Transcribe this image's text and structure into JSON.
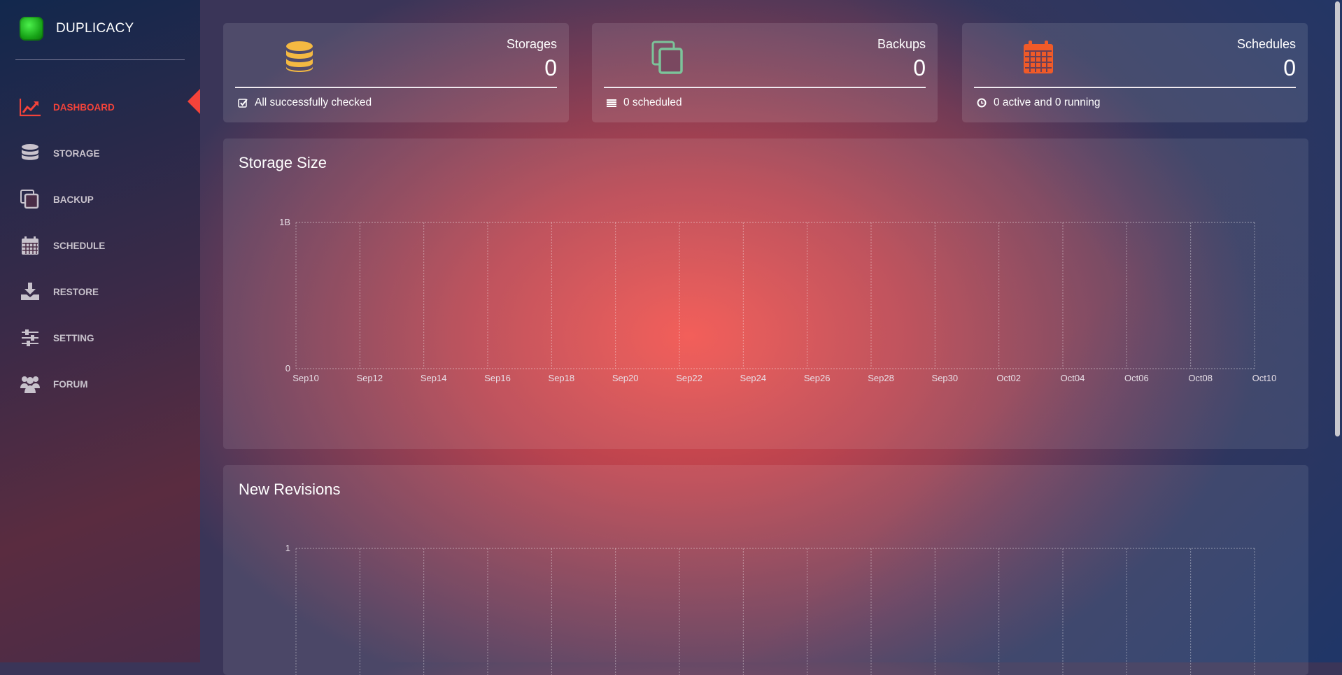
{
  "app": {
    "name": "DUPLICACY"
  },
  "sidebar": {
    "items": [
      {
        "label": "DASHBOARD",
        "icon": "line-chart-icon",
        "active": true
      },
      {
        "label": "STORAGE",
        "icon": "database-icon"
      },
      {
        "label": "BACKUP",
        "icon": "copy-icon"
      },
      {
        "label": "SCHEDULE",
        "icon": "calendar-icon"
      },
      {
        "label": "RESTORE",
        "icon": "download-icon"
      },
      {
        "label": "SETTING",
        "icon": "sliders-icon"
      },
      {
        "label": "FORUM",
        "icon": "users-icon"
      }
    ]
  },
  "cards": [
    {
      "title": "Storages",
      "value": "0",
      "footer": "All successfully checked",
      "icon": "database-icon",
      "color": "#f4b942"
    },
    {
      "title": "Backups",
      "value": "0",
      "footer": "0 scheduled",
      "icon": "copy-icon",
      "color": "#7cc49a"
    },
    {
      "title": "Schedules",
      "value": "0",
      "footer": "0 active and 0 running",
      "icon": "calendar-icon",
      "color": "#f05a28"
    }
  ],
  "colors": {
    "accent": "#f4433a"
  },
  "chart_data": [
    {
      "type": "line",
      "title": "Storage Size",
      "x": [
        "Sep10",
        "Sep12",
        "Sep14",
        "Sep16",
        "Sep18",
        "Sep20",
        "Sep22",
        "Sep24",
        "Sep26",
        "Sep28",
        "Sep30",
        "Oct02",
        "Oct04",
        "Oct06",
        "Oct08",
        "Oct10"
      ],
      "yticks": [
        "0",
        "1B"
      ],
      "series": [],
      "grid": true
    },
    {
      "type": "line",
      "title": "New Revisions",
      "yticks": [
        "1"
      ],
      "series": [],
      "grid": true
    }
  ]
}
